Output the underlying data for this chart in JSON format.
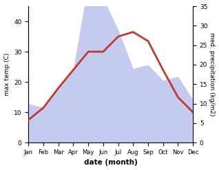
{
  "months": [
    "Jan",
    "Feb",
    "Mar",
    "Apr",
    "May",
    "Jun",
    "Jul",
    "Aug",
    "Sep",
    "Oct",
    "Nov",
    "Dec"
  ],
  "max_temp": [
    7.5,
    11.5,
    18,
    24,
    30,
    30,
    35,
    36.5,
    33.5,
    24,
    15,
    10
  ],
  "precipitation": [
    10,
    9,
    14,
    19,
    41,
    37,
    29,
    19,
    20,
    16,
    17,
    11
  ],
  "temp_ylim": [
    0,
    45
  ],
  "precip_ylim": [
    0,
    35
  ],
  "temp_color": "#c0392b",
  "precip_fill_color": "#c5caf0",
  "xlabel": "date (month)",
  "ylabel_left": "max temp (C)",
  "ylabel_right": "med. precipitation (kg/m2)",
  "left_yticks": [
    0,
    10,
    20,
    30,
    40
  ],
  "right_yticks": [
    0,
    5,
    10,
    15,
    20,
    25,
    30,
    35
  ],
  "figsize": [
    3.18,
    2.47
  ],
  "dpi": 100
}
